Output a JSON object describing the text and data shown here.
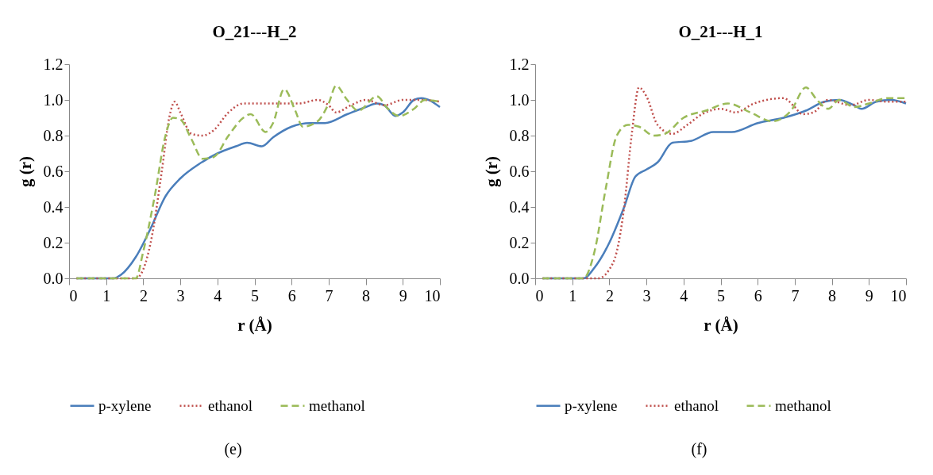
{
  "chart_data": [
    {
      "type": "line",
      "title": "O_21---H_2",
      "xlabel": "r (Å)",
      "ylabel": "g (r)",
      "annotations": [
        "(e)"
      ],
      "xlim": [
        0,
        10
      ],
      "xticks": [
        0,
        1,
        2,
        3,
        4,
        5,
        6,
        7,
        8,
        9,
        10
      ],
      "ylim": [
        0,
        1.2
      ],
      "yticks": [
        {
          "value": 0,
          "label": "0.0"
        },
        {
          "value": 0.2,
          "label": "0.2"
        },
        {
          "value": 0.4,
          "label": "0.4"
        },
        {
          "value": 0.6,
          "label": "0.6"
        },
        {
          "value": 0.8,
          "label": "0.8"
        },
        {
          "value": 1,
          "label": "1.0"
        },
        {
          "value": 1.2,
          "label": "1.2"
        }
      ],
      "grid": false,
      "legend": "bottom",
      "marker": "none",
      "series": [
        {
          "name": "p-xylene",
          "color": "#4a7ebb",
          "line_style": "solid",
          "x": [
            0.2,
            1.2,
            1.4,
            1.8,
            2.2,
            2.6,
            3.0,
            3.5,
            4.0,
            4.5,
            4.8,
            5.2,
            5.5,
            6.0,
            6.5,
            6.9,
            7.5,
            8.0,
            8.3,
            8.5,
            8.8,
            9.0,
            9.3,
            9.5,
            10
          ],
          "values": [
            0,
            0,
            0.02,
            0.12,
            0.28,
            0.46,
            0.56,
            0.64,
            0.7,
            0.74,
            0.76,
            0.74,
            0.79,
            0.85,
            0.87,
            0.87,
            0.92,
            0.96,
            0.98,
            0.97,
            0.91,
            0.93,
            1.0,
            1.01,
            0.96
          ]
        },
        {
          "name": "ethanol",
          "color": "#c0504d",
          "line_style": "dotted",
          "x": [
            0.2,
            1.2,
            1.8,
            2.0,
            2.2,
            2.5,
            2.7,
            2.85,
            3.0,
            3.3,
            3.6,
            3.9,
            4.3,
            4.7,
            5.2,
            5.8,
            6.2,
            6.7,
            7.0,
            7.2,
            7.6,
            8.0,
            8.5,
            9.0,
            9.5,
            10
          ],
          "values": [
            0,
            0,
            0,
            0.05,
            0.2,
            0.6,
            0.9,
            0.99,
            0.93,
            0.81,
            0.8,
            0.83,
            0.93,
            0.98,
            0.98,
            0.98,
            0.98,
            1.0,
            0.97,
            0.93,
            0.97,
            1.0,
            0.97,
            1.0,
            1.0,
            0.99
          ]
        },
        {
          "name": "methanol",
          "color": "#9bbb59",
          "line_style": "dashed",
          "x": [
            0.2,
            1.2,
            1.8,
            2.0,
            2.3,
            2.6,
            2.8,
            3.0,
            3.3,
            3.6,
            3.9,
            4.3,
            4.7,
            4.9,
            5.3,
            5.5,
            5.8,
            6.1,
            6.3,
            6.7,
            7.0,
            7.2,
            7.5,
            7.8,
            8.3,
            8.6,
            8.9,
            9.3,
            9.6,
            10
          ],
          "values": [
            0,
            0,
            0,
            0.15,
            0.45,
            0.8,
            0.9,
            0.89,
            0.78,
            0.67,
            0.68,
            0.8,
            0.9,
            0.92,
            0.82,
            0.87,
            1.06,
            0.94,
            0.85,
            0.88,
            0.98,
            1.08,
            1.0,
            0.94,
            1.02,
            0.95,
            0.91,
            0.95,
            1.0,
            0.99
          ]
        }
      ]
    },
    {
      "type": "line",
      "title": "O_21---H_1",
      "xlabel": "r (Å)",
      "ylabel": "g (r)",
      "annotations": [
        "(f)"
      ],
      "xlim": [
        0,
        10
      ],
      "xticks": [
        0,
        1,
        2,
        3,
        4,
        5,
        6,
        7,
        8,
        9,
        10
      ],
      "ylim": [
        0,
        1.2
      ],
      "yticks": [
        {
          "value": 0,
          "label": "0.0"
        },
        {
          "value": 0.2,
          "label": "0.2"
        },
        {
          "value": 0.4,
          "label": "0.4"
        },
        {
          "value": 0.6,
          "label": "0.6"
        },
        {
          "value": 0.8,
          "label": "0.8"
        },
        {
          "value": 1,
          "label": "1.0"
        },
        {
          "value": 1.2,
          "label": "1.2"
        }
      ],
      "grid": false,
      "legend": "bottom",
      "marker": "none",
      "series": [
        {
          "name": "p-xylene",
          "color": "#4a7ebb",
          "line_style": "solid",
          "x": [
            0.2,
            1.3,
            1.6,
            2.0,
            2.4,
            2.7,
            3.0,
            3.3,
            3.7,
            4.2,
            4.8,
            5.3,
            6.0,
            6.7,
            7.3,
            7.8,
            8.2,
            8.6,
            8.8,
            9.2,
            9.6,
            10
          ],
          "values": [
            0,
            0,
            0.06,
            0.2,
            0.4,
            0.57,
            0.61,
            0.65,
            0.76,
            0.77,
            0.82,
            0.82,
            0.87,
            0.9,
            0.94,
            0.99,
            1.0,
            0.97,
            0.95,
            0.99,
            1.0,
            0.98
          ]
        },
        {
          "name": "ethanol",
          "color": "#c0504d",
          "line_style": "dotted",
          "x": [
            0.2,
            1.7,
            2.0,
            2.2,
            2.4,
            2.6,
            2.8,
            3.0,
            3.3,
            3.7,
            4.1,
            4.5,
            5.0,
            5.4,
            5.9,
            6.7,
            7.0,
            7.2,
            7.5,
            7.9,
            8.5,
            9.0,
            9.5,
            10
          ],
          "values": [
            0,
            0,
            0.05,
            0.15,
            0.4,
            0.8,
            1.07,
            1.02,
            0.86,
            0.81,
            0.86,
            0.92,
            0.95,
            0.93,
            0.98,
            1.01,
            0.96,
            0.92,
            0.93,
            1.0,
            0.97,
            1.0,
            0.99,
            0.99
          ]
        },
        {
          "name": "methanol",
          "color": "#9bbb59",
          "line_style": "dashed",
          "x": [
            0.2,
            1.3,
            1.6,
            1.9,
            2.2,
            2.5,
            2.8,
            3.2,
            3.5,
            4.0,
            4.6,
            5.2,
            5.8,
            6.4,
            6.9,
            7.3,
            7.6,
            7.9,
            8.2,
            8.6,
            9.0,
            9.5,
            10
          ],
          "values": [
            0,
            0,
            0.15,
            0.5,
            0.8,
            0.86,
            0.85,
            0.8,
            0.81,
            0.9,
            0.94,
            0.98,
            0.93,
            0.88,
            0.94,
            1.07,
            1.0,
            0.95,
            1.0,
            0.96,
            0.98,
            1.01,
            1.01
          ]
        }
      ]
    }
  ]
}
